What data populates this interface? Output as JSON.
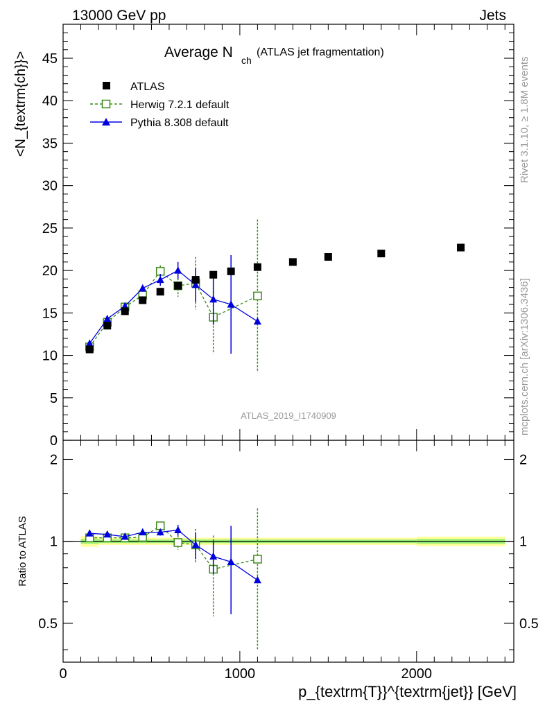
{
  "header": {
    "left": "13000 GeV pp",
    "right": "Jets"
  },
  "title": {
    "main": "Average N",
    "sub": "ch",
    "note": "(ATLAS jet fragmentation)"
  },
  "side_labels": {
    "rivet": "Rivet 3.1.10, ≥ 1.8M events",
    "mcplots": "mcplots.cern.ch [arXiv:1306.3436]"
  },
  "analysis_label": "ATLAS_2019_I1740909",
  "axes": {
    "y_main_label": "<N_{textrm{ch}}>",
    "y_main_ticks": [
      "0",
      "5",
      "10",
      "15",
      "20",
      "25",
      "30",
      "35",
      "40",
      "45"
    ],
    "y_ratio_label": "Ratio to ATLAS",
    "y_ratio_ticks_left": [
      "0.5",
      "1",
      "2"
    ],
    "y_ratio_ticks_right": [
      "0.5",
      "1",
      "2"
    ],
    "x_ticks": [
      "0",
      "1000",
      "2000"
    ],
    "x_label": "p_{textrm{T}}^{textrm{jet}} [GeV]"
  },
  "colors": {
    "atlas": "#000000",
    "herwig": "#3a8a1a",
    "pythia": "#0000dd",
    "band_inner": "#99ee77",
    "band_outer": "#ffff99"
  },
  "chart_data": [
    {
      "type": "scatter",
      "panel": "main",
      "xlim": [
        0,
        2550
      ],
      "ylim": [
        0,
        49
      ],
      "legend_position": "top-left",
      "series": [
        {
          "name": "ATLAS",
          "style": "black-square-marker",
          "points": [
            {
              "x": 150,
              "y": 10.7,
              "err": 0.3
            },
            {
              "x": 250,
              "y": 13.5,
              "err": 0.3
            },
            {
              "x": 350,
              "y": 15.2,
              "err": 0.3
            },
            {
              "x": 450,
              "y": 16.5,
              "err": 0.3
            },
            {
              "x": 550,
              "y": 17.5,
              "err": 0.3
            },
            {
              "x": 650,
              "y": 18.2,
              "err": 0.3
            },
            {
              "x": 750,
              "y": 18.9,
              "err": 0.3
            },
            {
              "x": 850,
              "y": 19.5,
              "err": 0.3
            },
            {
              "x": 950,
              "y": 19.9,
              "err": 0.3
            },
            {
              "x": 1100,
              "y": 20.4,
              "err": 0.3
            },
            {
              "x": 1300,
              "y": 21.0,
              "err": 0.3
            },
            {
              "x": 1500,
              "y": 21.6,
              "err": 0.3
            },
            {
              "x": 1800,
              "y": 22.0,
              "err": 0.3
            },
            {
              "x": 2250,
              "y": 22.7,
              "err": 0.3
            }
          ]
        },
        {
          "name": "Herwig 7.2.1 default",
          "style": "green-dashed-open-square",
          "points": [
            {
              "x": 150,
              "y": 11.0,
              "err": 0.3
            },
            {
              "x": 250,
              "y": 13.9,
              "err": 0.3
            },
            {
              "x": 350,
              "y": 15.7,
              "err": 0.3
            },
            {
              "x": 450,
              "y": 17.1,
              "err": 0.4
            },
            {
              "x": 550,
              "y": 19.9,
              "err": 0.7
            },
            {
              "x": 650,
              "y": 18.2,
              "err": 1.3
            },
            {
              "x": 750,
              "y": 18.5,
              "err": 3.1
            },
            {
              "x": 850,
              "y": 14.5,
              "err": 4.3
            },
            {
              "x": 1100,
              "y": 17.0,
              "err": 9.0
            }
          ]
        },
        {
          "name": "Pythia 8.308 default",
          "style": "blue-solid-triangle",
          "points": [
            {
              "x": 150,
              "y": 11.4,
              "err": 0.2
            },
            {
              "x": 250,
              "y": 14.3,
              "err": 0.2
            },
            {
              "x": 350,
              "y": 15.8,
              "err": 0.3
            },
            {
              "x": 450,
              "y": 17.9,
              "err": 0.4
            },
            {
              "x": 550,
              "y": 18.9,
              "err": 0.7
            },
            {
              "x": 650,
              "y": 20.0,
              "err": 1.0
            },
            {
              "x": 750,
              "y": 18.3,
              "err": 2.0
            },
            {
              "x": 850,
              "y": 16.6,
              "err": 3.0
            },
            {
              "x": 950,
              "y": 16.0,
              "err": 5.8
            },
            {
              "x": 1100,
              "y": 14.0,
              "err": 0.1
            }
          ]
        }
      ]
    },
    {
      "type": "scatter",
      "panel": "ratio",
      "xlim": [
        0,
        2550
      ],
      "ylim": [
        0.36,
        2.35
      ],
      "yscale": "log",
      "reference_line": 1,
      "bands": [
        {
          "x0": 100,
          "x1": 200,
          "lo1": 0.98,
          "hi1": 1.02,
          "lo2": 0.955,
          "hi2": 1.045
        },
        {
          "x0": 200,
          "x1": 2000,
          "lo1": 0.985,
          "hi1": 1.015,
          "lo2": 0.97,
          "hi2": 1.03
        },
        {
          "x0": 2000,
          "x1": 2500,
          "lo1": 0.98,
          "hi1": 1.02,
          "lo2": 0.96,
          "hi2": 1.04
        }
      ],
      "series": [
        {
          "name": "Herwig 7.2.1 default",
          "style": "green-dashed-open-square",
          "points": [
            {
              "x": 150,
              "y": 1.03,
              "err": 0.02
            },
            {
              "x": 250,
              "y": 1.03,
              "err": 0.02
            },
            {
              "x": 350,
              "y": 1.03,
              "err": 0.02
            },
            {
              "x": 450,
              "y": 1.035,
              "err": 0.02
            },
            {
              "x": 550,
              "y": 1.14,
              "err": 0.03
            },
            {
              "x": 650,
              "y": 0.99,
              "err": 0.06
            },
            {
              "x": 750,
              "y": 0.97,
              "err": 0.14
            },
            {
              "x": 850,
              "y": 0.79,
              "err": 0.26
            },
            {
              "x": 1100,
              "y": 0.86,
              "err": 0.46
            }
          ]
        },
        {
          "name": "Pythia 8.308 default",
          "style": "blue-solid-triangle",
          "points": [
            {
              "x": 150,
              "y": 1.07,
              "err": 0.02
            },
            {
              "x": 250,
              "y": 1.06,
              "err": 0.02
            },
            {
              "x": 350,
              "y": 1.04,
              "err": 0.02
            },
            {
              "x": 450,
              "y": 1.08,
              "err": 0.02
            },
            {
              "x": 550,
              "y": 1.08,
              "err": 0.03
            },
            {
              "x": 650,
              "y": 1.1,
              "err": 0.05
            },
            {
              "x": 750,
              "y": 0.97,
              "err": 0.11
            },
            {
              "x": 850,
              "y": 0.88,
              "err": 0.12
            },
            {
              "x": 950,
              "y": 0.84,
              "err": 0.3
            },
            {
              "x": 1100,
              "y": 0.72,
              "err": 0.005
            }
          ]
        }
      ]
    }
  ]
}
